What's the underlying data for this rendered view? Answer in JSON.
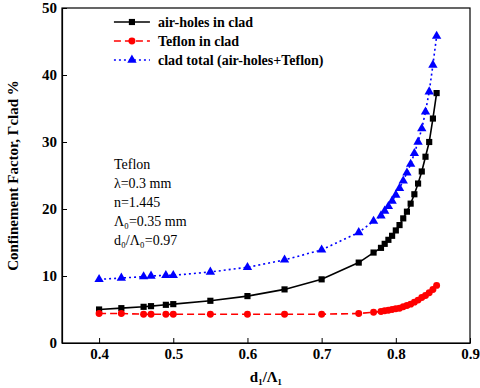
{
  "chart_data": {
    "type": "line",
    "x_label": "d₁/Λ₁",
    "y_label": "Confinement Factor, Γclad %",
    "x": [
      0.4,
      0.43,
      0.46,
      0.47,
      0.49,
      0.5,
      0.55,
      0.6,
      0.65,
      0.7,
      0.75,
      0.77,
      0.78,
      0.785,
      0.79,
      0.795,
      0.8,
      0.805,
      0.81,
      0.815,
      0.82,
      0.825,
      0.83,
      0.835,
      0.84,
      0.845,
      0.85,
      0.855
    ],
    "series": [
      {
        "name": "air-holes in clad",
        "color": "#000000",
        "marker": "square",
        "line_style": "solid",
        "values": [
          5.0,
          5.2,
          5.4,
          5.5,
          5.7,
          5.8,
          6.3,
          7.0,
          8.0,
          9.5,
          12.0,
          13.5,
          14.2,
          14.8,
          15.4,
          16.0,
          16.8,
          17.6,
          18.6,
          19.6,
          20.8,
          22.2,
          23.8,
          25.6,
          27.8,
          30.0,
          33.5,
          37.3
        ]
      },
      {
        "name": "Teflon in clad",
        "color": "#ff0000",
        "marker": "circle",
        "line_style": "dashed",
        "values": [
          4.4,
          4.4,
          4.3,
          4.3,
          4.3,
          4.3,
          4.3,
          4.3,
          4.3,
          4.3,
          4.4,
          4.6,
          4.7,
          4.8,
          4.9,
          5.0,
          5.1,
          5.2,
          5.4,
          5.6,
          5.8,
          6.1,
          6.4,
          6.8,
          7.1,
          7.5,
          8.0,
          8.6
        ]
      },
      {
        "name": "clad total (air-holes+Teflon)",
        "color": "#0000ff",
        "marker": "triangle",
        "line_style": "dotted",
        "values": [
          9.5,
          9.7,
          9.9,
          10.0,
          10.1,
          10.1,
          10.6,
          11.3,
          12.4,
          13.9,
          16.5,
          18.2,
          19.0,
          19.7,
          20.4,
          21.2,
          22.1,
          23.1,
          24.2,
          25.4,
          26.7,
          28.3,
          30.0,
          32.0,
          34.5,
          37.5,
          41.5,
          45.8
        ]
      }
    ],
    "annotations": [
      "Teflon",
      "λ=0.3 mm",
      "n=1.445",
      "Λ₀=0.35 mm",
      "d₀/Λ₀=0.97"
    ],
    "xlim": [
      0.35,
      0.9
    ],
    "xticks": [
      0.4,
      0.5,
      0.6,
      0.7,
      0.8,
      0.9
    ],
    "ylim": [
      0,
      50
    ],
    "yticks": [
      0,
      10,
      20,
      30,
      40,
      50
    ],
    "grid": false,
    "legend": "top-left"
  }
}
